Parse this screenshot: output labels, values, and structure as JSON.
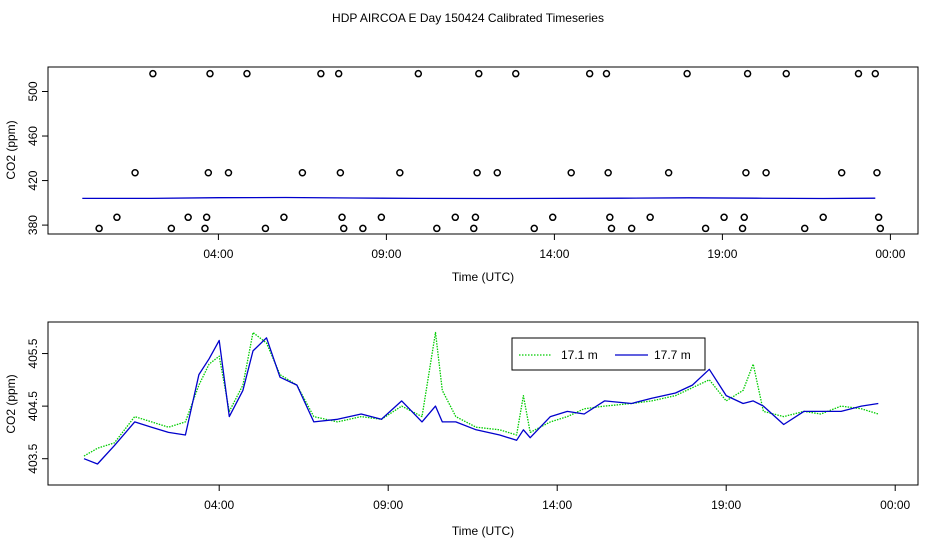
{
  "title": "HDP AIRCOA E  Day 150424  Calibrated Timeseries",
  "chart_data": [
    {
      "type": "scatter",
      "xlabel": "Time (UTC)",
      "ylabel": "CO2 (ppm)",
      "x_ticks": [
        "04:00",
        "09:00",
        "14:00",
        "19:00",
        "00:00"
      ],
      "y_ticks": [
        "380",
        "420",
        "460",
        "500"
      ],
      "xlim_hours": [
        0,
        24.6
      ],
      "ylim": [
        372,
        522
      ],
      "grid": false,
      "marker_points": [
        {
          "t": 0.45,
          "y": 377
        },
        {
          "t": 0.98,
          "y": 387
        },
        {
          "t": 1.52,
          "y": 427
        },
        {
          "t": 2.05,
          "y": 516
        },
        {
          "t": 2.6,
          "y": 377
        },
        {
          "t": 3.1,
          "y": 387
        },
        {
          "t": 3.6,
          "y": 377
        },
        {
          "t": 3.65,
          "y": 387
        },
        {
          "t": 3.7,
          "y": 427
        },
        {
          "t": 3.75,
          "y": 516
        },
        {
          "t": 4.3,
          "y": 427
        },
        {
          "t": 4.85,
          "y": 516
        },
        {
          "t": 5.4,
          "y": 377
        },
        {
          "t": 5.95,
          "y": 387
        },
        {
          "t": 6.5,
          "y": 427
        },
        {
          "t": 7.05,
          "y": 516
        },
        {
          "t": 7.58,
          "y": 516
        },
        {
          "t": 7.63,
          "y": 427
        },
        {
          "t": 7.68,
          "y": 387
        },
        {
          "t": 7.73,
          "y": 377
        },
        {
          "t": 8.3,
          "y": 377
        },
        {
          "t": 8.85,
          "y": 387
        },
        {
          "t": 9.4,
          "y": 427
        },
        {
          "t": 9.95,
          "y": 516
        },
        {
          "t": 10.5,
          "y": 377
        },
        {
          "t": 11.05,
          "y": 387
        },
        {
          "t": 11.6,
          "y": 377
        },
        {
          "t": 11.65,
          "y": 387
        },
        {
          "t": 11.7,
          "y": 427
        },
        {
          "t": 11.75,
          "y": 516
        },
        {
          "t": 12.3,
          "y": 427
        },
        {
          "t": 12.85,
          "y": 516
        },
        {
          "t": 13.4,
          "y": 377
        },
        {
          "t": 13.95,
          "y": 387
        },
        {
          "t": 14.5,
          "y": 427
        },
        {
          "t": 15.05,
          "y": 516
        },
        {
          "t": 15.55,
          "y": 516
        },
        {
          "t": 15.6,
          "y": 427
        },
        {
          "t": 15.65,
          "y": 387
        },
        {
          "t": 15.7,
          "y": 377
        },
        {
          "t": 16.3,
          "y": 377
        },
        {
          "t": 16.85,
          "y": 387
        },
        {
          "t": 17.4,
          "y": 427
        },
        {
          "t": 17.95,
          "y": 516
        },
        {
          "t": 18.5,
          "y": 377
        },
        {
          "t": 19.05,
          "y": 387
        },
        {
          "t": 19.6,
          "y": 377
        },
        {
          "t": 19.65,
          "y": 387
        },
        {
          "t": 19.7,
          "y": 427
        },
        {
          "t": 19.75,
          "y": 516
        },
        {
          "t": 20.3,
          "y": 427
        },
        {
          "t": 20.9,
          "y": 516
        },
        {
          "t": 21.45,
          "y": 377
        },
        {
          "t": 22.0,
          "y": 387
        },
        {
          "t": 22.55,
          "y": 427
        },
        {
          "t": 23.05,
          "y": 516
        },
        {
          "t": 23.55,
          "y": 516
        },
        {
          "t": 23.6,
          "y": 427
        },
        {
          "t": 23.65,
          "y": 387
        },
        {
          "t": 23.7,
          "y": 377
        }
      ],
      "series": [
        {
          "values": [
            [
              -0.05,
              404.0
            ],
            [
              2.0,
              404.0
            ],
            [
              4.0,
              404.6
            ],
            [
              6.0,
              404.8
            ],
            [
              8.0,
              404.3
            ],
            [
              10.0,
              404.0
            ],
            [
              12.0,
              403.9
            ],
            [
              14.0,
              404.0
            ],
            [
              16.0,
              404.2
            ],
            [
              18.0,
              404.5
            ],
            [
              20.0,
              404.2
            ],
            [
              22.0,
              403.9
            ],
            [
              23.55,
              404.2
            ]
          ],
          "color": "#0000cc"
        }
      ]
    },
    {
      "type": "line",
      "xlabel": "Time (UTC)",
      "ylabel": "CO2 (ppm)",
      "x_ticks": [
        "04:00",
        "09:00",
        "14:00",
        "19:00",
        "00:00"
      ],
      "y_ticks": [
        "403.5",
        "404.5",
        "405.5"
      ],
      "xlim_hours": [
        0,
        24.5
      ],
      "ylim": [
        403.0,
        406.1
      ],
      "grid": false,
      "legend": {
        "position": "top-right-inside",
        "entries": [
          "17.1 m",
          "17.7 m"
        ]
      },
      "series": [
        {
          "name": "17.1 m",
          "color": "#00cc00",
          "style": "dotted",
          "values": [
            [
              0.0,
              403.55
            ],
            [
              0.4,
              403.7
            ],
            [
              0.9,
              403.8
            ],
            [
              1.5,
              404.3
            ],
            [
              2.0,
              404.2
            ],
            [
              2.5,
              404.1
            ],
            [
              3.0,
              404.2
            ],
            [
              3.4,
              404.9
            ],
            [
              3.7,
              405.3
            ],
            [
              4.0,
              405.45
            ],
            [
              4.3,
              404.4
            ],
            [
              4.7,
              404.9
            ],
            [
              5.0,
              405.9
            ],
            [
              5.4,
              405.7
            ],
            [
              5.8,
              405.1
            ],
            [
              6.3,
              404.9
            ],
            [
              6.8,
              404.3
            ],
            [
              7.5,
              404.2
            ],
            [
              8.2,
              404.3
            ],
            [
              8.8,
              404.25
            ],
            [
              9.4,
              404.5
            ],
            [
              10.0,
              404.3
            ],
            [
              10.4,
              405.9
            ],
            [
              10.6,
              404.8
            ],
            [
              11.0,
              404.3
            ],
            [
              11.6,
              404.1
            ],
            [
              12.3,
              404.05
            ],
            [
              12.8,
              403.95
            ],
            [
              13.0,
              404.7
            ],
            [
              13.2,
              404.0
            ],
            [
              13.8,
              404.2
            ],
            [
              14.3,
              404.3
            ],
            [
              14.8,
              404.45
            ],
            [
              15.4,
              404.5
            ],
            [
              16.2,
              404.55
            ],
            [
              16.8,
              404.6
            ],
            [
              17.5,
              404.7
            ],
            [
              18.0,
              404.85
            ],
            [
              18.5,
              405.0
            ],
            [
              19.0,
              404.6
            ],
            [
              19.5,
              404.8
            ],
            [
              19.8,
              405.3
            ],
            [
              20.1,
              404.4
            ],
            [
              20.7,
              404.3
            ],
            [
              21.3,
              404.4
            ],
            [
              21.8,
              404.35
            ],
            [
              22.4,
              404.5
            ],
            [
              23.0,
              404.45
            ],
            [
              23.5,
              404.35
            ]
          ]
        },
        {
          "name": "17.7 m",
          "color": "#0000cc",
          "style": "solid",
          "values": [
            [
              0.0,
              403.5
            ],
            [
              0.4,
              403.4
            ],
            [
              0.9,
              403.75
            ],
            [
              1.5,
              404.2
            ],
            [
              2.0,
              404.1
            ],
            [
              2.5,
              404.0
            ],
            [
              3.0,
              403.95
            ],
            [
              3.4,
              405.1
            ],
            [
              3.7,
              405.4
            ],
            [
              4.0,
              405.75
            ],
            [
              4.3,
              404.3
            ],
            [
              4.7,
              404.8
            ],
            [
              5.0,
              405.55
            ],
            [
              5.4,
              405.8
            ],
            [
              5.8,
              405.05
            ],
            [
              6.3,
              404.9
            ],
            [
              6.8,
              404.2
            ],
            [
              7.5,
              404.25
            ],
            [
              8.2,
              404.35
            ],
            [
              8.8,
              404.25
            ],
            [
              9.4,
              404.6
            ],
            [
              10.0,
              404.2
            ],
            [
              10.4,
              404.5
            ],
            [
              10.6,
              404.2
            ],
            [
              11.0,
              404.2
            ],
            [
              11.6,
              404.05
            ],
            [
              12.3,
              403.95
            ],
            [
              12.8,
              403.85
            ],
            [
              13.0,
              404.05
            ],
            [
              13.2,
              403.9
            ],
            [
              13.8,
              404.3
            ],
            [
              14.3,
              404.4
            ],
            [
              14.8,
              404.35
            ],
            [
              15.4,
              404.6
            ],
            [
              16.2,
              404.55
            ],
            [
              16.8,
              404.65
            ],
            [
              17.5,
              404.75
            ],
            [
              18.0,
              404.9
            ],
            [
              18.5,
              405.2
            ],
            [
              19.0,
              404.7
            ],
            [
              19.5,
              404.55
            ],
            [
              19.8,
              404.6
            ],
            [
              20.1,
              404.5
            ],
            [
              20.7,
              404.15
            ],
            [
              21.3,
              404.4
            ],
            [
              21.8,
              404.4
            ],
            [
              22.4,
              404.4
            ],
            [
              23.0,
              404.5
            ],
            [
              23.5,
              404.55
            ]
          ]
        }
      ]
    }
  ]
}
